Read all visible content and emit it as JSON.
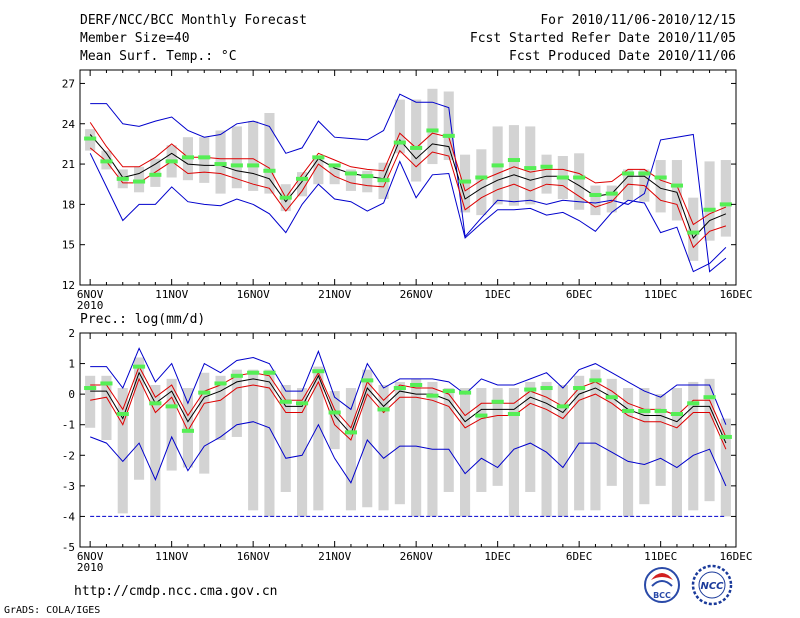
{
  "header": {
    "title": "DERF/NCC/BCC Monthly Forecast",
    "member_size": "Member Size=40",
    "variable": "Mean Surf. Temp.: °C",
    "period": "For 2010/11/06-2010/12/15",
    "started": "Fcst Started Refer Date 2010/11/05",
    "produced": "Fcst Produced Date 2010/11/06"
  },
  "footer": {
    "url": "http://cmdp.ncc.cma.gov.cn",
    "credit": "GrADS: COLA/IGES",
    "logo_bcc": "BCC",
    "logo_ncc": "NCC"
  },
  "colors": {
    "box": "#d3d3d3",
    "median": "#55ee55",
    "mean": "#000000",
    "std": "#dd0000",
    "extreme": "#0000cc",
    "frame": "#000000"
  },
  "chart_data": [
    {
      "type": "line",
      "title": "Mean Surf. Temp.: °C",
      "ylim": [
        12,
        28
      ],
      "yticks": [
        12,
        15,
        18,
        21,
        24,
        27
      ],
      "xlim": [
        0.5,
        40.5
      ],
      "xticks": [
        {
          "day": 1,
          "label": "6NOV"
        },
        {
          "day": 6,
          "label": "11NOV"
        },
        {
          "day": 11,
          "label": "16NOV"
        },
        {
          "day": 16,
          "label": "21NOV"
        },
        {
          "day": 21,
          "label": "26NOV"
        },
        {
          "day": 26,
          "label": "1DEC"
        },
        {
          "day": 31,
          "label": "6DEC"
        },
        {
          "day": 36,
          "label": "11DEC"
        },
        {
          "day": 41,
          "label": "16DEC"
        }
      ],
      "year_label": "2010",
      "days": [
        1,
        2,
        3,
        4,
        5,
        6,
        7,
        8,
        9,
        10,
        11,
        12,
        13,
        14,
        15,
        16,
        17,
        18,
        19,
        20,
        21,
        22,
        23,
        24,
        25,
        26,
        27,
        28,
        29,
        30,
        31,
        32,
        33,
        34,
        35,
        36,
        37,
        38,
        39,
        40
      ],
      "series": [
        {
          "name": "max",
          "values": [
            25.5,
            25.5,
            24.0,
            23.8,
            24.2,
            24.5,
            23.5,
            23.0,
            23.2,
            24.0,
            24.2,
            23.8,
            21.8,
            22.2,
            24.2,
            23.0,
            22.9,
            22.8,
            23.5,
            26.2,
            25.6,
            25.6,
            25.2,
            15.6,
            17.0,
            18.3,
            18.2,
            18.3,
            18.0,
            18.3,
            18.2,
            18.1,
            18.3,
            18.0,
            18.8,
            22.8,
            23.0,
            23.2,
            13.0,
            14.0
          ]
        },
        {
          "name": "mean_plus_std",
          "values": [
            24.1,
            22.3,
            20.8,
            20.8,
            21.5,
            22.5,
            21.5,
            21.5,
            21.4,
            21.4,
            21.4,
            20.7,
            18.5,
            20.2,
            21.8,
            21.3,
            20.8,
            20.6,
            20.5,
            23.3,
            22.2,
            23.3,
            23.0,
            19.0,
            19.8,
            20.3,
            20.8,
            20.4,
            20.6,
            20.6,
            20.3,
            19.6,
            19.7,
            20.6,
            20.6,
            19.8,
            19.4,
            16.5,
            17.3,
            17.8
          ]
        },
        {
          "name": "mean",
          "values": [
            23.2,
            21.8,
            20.0,
            20.3,
            21.0,
            21.8,
            21.0,
            20.9,
            20.9,
            20.5,
            20.3,
            19.9,
            18.2,
            19.7,
            21.4,
            20.7,
            20.3,
            20.1,
            19.9,
            22.8,
            21.4,
            22.5,
            22.3,
            18.4,
            19.2,
            19.8,
            20.2,
            19.8,
            20.1,
            20.1,
            19.4,
            18.6,
            18.8,
            20.1,
            20.1,
            19.2,
            18.9,
            15.5,
            16.8,
            17.3
          ]
        },
        {
          "name": "mean_minus_std",
          "values": [
            22.2,
            21.2,
            19.6,
            19.6,
            20.4,
            21.2,
            20.3,
            20.4,
            20.3,
            19.9,
            19.5,
            19.2,
            17.5,
            19.0,
            21.0,
            20.1,
            19.6,
            19.4,
            19.3,
            22.0,
            20.8,
            21.9,
            21.6,
            17.6,
            18.5,
            19.1,
            19.5,
            19.0,
            19.5,
            19.4,
            18.6,
            17.8,
            18.2,
            19.5,
            19.4,
            18.3,
            18.0,
            14.8,
            16.0,
            16.4
          ]
        },
        {
          "name": "min",
          "values": [
            21.8,
            19.3,
            16.8,
            18.0,
            18.0,
            19.3,
            18.2,
            18.0,
            17.9,
            18.4,
            18.0,
            17.3,
            15.9,
            18.0,
            19.5,
            18.4,
            18.2,
            17.5,
            18.1,
            21.2,
            18.5,
            20.2,
            20.3,
            15.5,
            16.6,
            17.6,
            17.6,
            17.7,
            17.2,
            17.4,
            16.8,
            16.0,
            17.4,
            18.3,
            18.1,
            15.9,
            16.3,
            13.0,
            13.6,
            14.8
          ]
        },
        {
          "name": "median",
          "values": [
            22.9,
            21.2,
            19.9,
            19.7,
            20.2,
            21.2,
            21.5,
            21.5,
            21.0,
            20.9,
            20.9,
            20.5,
            18.5,
            19.9,
            21.5,
            20.9,
            20.3,
            20.1,
            19.8,
            22.6,
            22.2,
            23.5,
            23.1,
            19.7,
            20.0,
            20.9,
            21.3,
            20.7,
            20.8,
            20.0,
            20.0,
            18.7,
            18.8,
            20.3,
            20.3,
            20.0,
            19.4,
            15.9,
            17.6,
            18.0
          ]
        },
        {
          "name": "box_upper",
          "values": [
            23.6,
            22.0,
            20.6,
            20.8,
            21.4,
            22.4,
            23.0,
            23.0,
            23.5,
            23.8,
            24.2,
            24.8,
            19.5,
            20.4,
            21.6,
            21.0,
            20.6,
            20.5,
            21.1,
            25.8,
            25.8,
            26.6,
            26.4,
            21.7,
            22.1,
            23.8,
            23.9,
            23.8,
            21.7,
            21.6,
            21.8,
            19.4,
            19.4,
            20.6,
            20.6,
            21.3,
            21.3,
            18.5,
            21.2,
            21.3
          ]
        },
        {
          "name": "box_lower",
          "values": [
            22.0,
            20.6,
            19.2,
            18.9,
            19.3,
            20.0,
            19.8,
            19.6,
            18.8,
            19.2,
            19.0,
            18.8,
            17.5,
            18.6,
            19.5,
            19.5,
            19.0,
            18.9,
            18.4,
            21.8,
            19.7,
            21.0,
            21.3,
            17.4,
            17.2,
            18.0,
            17.9,
            18.0,
            18.8,
            18.4,
            17.6,
            17.2,
            17.4,
            18.3,
            18.2,
            17.4,
            16.8,
            13.8,
            15.3,
            15.6
          ]
        }
      ]
    },
    {
      "type": "line",
      "title": "Prec.: log(mm/d)",
      "ylim": [
        -5,
        2
      ],
      "yticks": [
        -5,
        -4,
        -3,
        -2,
        -1,
        0,
        1,
        2
      ],
      "xlim": [
        0.5,
        40.5
      ],
      "xticks": [
        {
          "day": 1,
          "label": "6NOV"
        },
        {
          "day": 6,
          "label": "11NOV"
        },
        {
          "day": 11,
          "label": "16NOV"
        },
        {
          "day": 16,
          "label": "21NOV"
        },
        {
          "day": 21,
          "label": "26NOV"
        },
        {
          "day": 26,
          "label": "1DEC"
        },
        {
          "day": 31,
          "label": "6DEC"
        },
        {
          "day": 36,
          "label": "11DEC"
        },
        {
          "day": 41,
          "label": "16DEC"
        }
      ],
      "year_label": "2010",
      "days": [
        1,
        2,
        3,
        4,
        5,
        6,
        7,
        8,
        9,
        10,
        11,
        12,
        13,
        14,
        15,
        16,
        17,
        18,
        19,
        20,
        21,
        22,
        23,
        24,
        25,
        26,
        27,
        28,
        29,
        30,
        31,
        32,
        33,
        34,
        35,
        36,
        37,
        38,
        39,
        40
      ],
      "reference_line": -4,
      "series": [
        {
          "name": "max",
          "values": [
            0.9,
            0.9,
            0.2,
            1.5,
            0.4,
            1.0,
            -0.3,
            1.0,
            0.7,
            1.1,
            1.2,
            1.0,
            0.1,
            0.1,
            1.4,
            -0.1,
            -0.5,
            1.0,
            0.2,
            0.5,
            0.5,
            0.5,
            0.4,
            0.0,
            0.5,
            0.3,
            0.3,
            0.5,
            0.7,
            0.2,
            0.8,
            1.0,
            0.7,
            0.4,
            0.1,
            -0.1,
            0.3,
            0.3,
            0.3,
            -1.0
          ]
        },
        {
          "name": "mean_plus_std",
          "values": [
            0.3,
            0.3,
            -0.5,
            0.9,
            -0.1,
            0.3,
            -0.7,
            0.1,
            0.3,
            0.6,
            0.7,
            0.6,
            -0.2,
            -0.2,
            0.7,
            -0.5,
            -1.1,
            0.4,
            -0.2,
            0.3,
            0.2,
            0.2,
            0.0,
            -0.7,
            -0.3,
            -0.3,
            -0.3,
            0.1,
            -0.1,
            -0.4,
            0.2,
            0.4,
            0.1,
            -0.3,
            -0.5,
            -0.5,
            -0.7,
            -0.2,
            -0.2,
            -1.4
          ]
        },
        {
          "name": "mean",
          "values": [
            0.1,
            0.1,
            -0.8,
            0.7,
            -0.3,
            0.1,
            -0.9,
            -0.1,
            0.1,
            0.4,
            0.5,
            0.4,
            -0.4,
            -0.4,
            0.6,
            -0.7,
            -1.3,
            0.2,
            -0.4,
            0.1,
            0.0,
            0.0,
            -0.2,
            -0.9,
            -0.5,
            -0.5,
            -0.5,
            -0.1,
            -0.3,
            -0.6,
            0.0,
            0.2,
            -0.1,
            -0.5,
            -0.7,
            -0.7,
            -0.9,
            -0.4,
            -0.4,
            -1.6
          ]
        },
        {
          "name": "mean_minus_std",
          "values": [
            -0.2,
            -0.1,
            -1.0,
            0.5,
            -0.6,
            -0.1,
            -1.2,
            -0.3,
            -0.2,
            0.2,
            0.3,
            0.2,
            -0.6,
            -0.6,
            0.4,
            -1.0,
            -1.5,
            0.0,
            -0.6,
            -0.1,
            -0.1,
            -0.2,
            -0.4,
            -1.1,
            -0.8,
            -0.7,
            -0.7,
            -0.3,
            -0.5,
            -0.8,
            -0.2,
            0.0,
            -0.3,
            -0.7,
            -0.9,
            -0.9,
            -1.1,
            -0.6,
            -0.6,
            -1.8
          ]
        },
        {
          "name": "min",
          "values": [
            -1.4,
            -1.6,
            -2.2,
            -1.6,
            -2.8,
            -1.4,
            -2.5,
            -1.7,
            -1.4,
            -1.0,
            -0.9,
            -1.1,
            -2.1,
            -2.0,
            -1.0,
            -2.1,
            -2.9,
            -1.5,
            -2.1,
            -1.7,
            -1.7,
            -1.8,
            -1.8,
            -2.6,
            -2.1,
            -2.4,
            -1.8,
            -1.6,
            -1.9,
            -2.4,
            -1.6,
            -1.6,
            -1.9,
            -2.2,
            -2.3,
            -2.1,
            -2.4,
            -2.0,
            -1.8,
            -3.0
          ]
        },
        {
          "name": "median",
          "values": [
            0.2,
            0.35,
            -0.65,
            0.9,
            -0.3,
            -0.4,
            -1.2,
            0.05,
            0.35,
            0.6,
            0.7,
            0.7,
            -0.25,
            -0.3,
            0.75,
            -0.6,
            -1.25,
            0.45,
            -0.5,
            0.2,
            0.3,
            -0.05,
            0.1,
            0.05,
            -0.7,
            -0.25,
            -0.65,
            0.15,
            0.2,
            -0.4,
            0.2,
            0.45,
            -0.1,
            -0.55,
            -0.55,
            -0.55,
            -0.65,
            -0.3,
            -0.1,
            -1.4
          ]
        },
        {
          "name": "box_upper",
          "values": [
            0.6,
            0.6,
            0.2,
            1.2,
            0.3,
            0.5,
            0.2,
            0.7,
            0.6,
            0.8,
            0.8,
            0.8,
            0.3,
            0.2,
            0.9,
            0.1,
            0.2,
            0.8,
            0.3,
            0.4,
            0.5,
            0.4,
            0.2,
            0.2,
            0.2,
            0.2,
            0.2,
            0.4,
            0.4,
            0.3,
            0.6,
            0.8,
            0.5,
            0.2,
            0.2,
            0.0,
            0.2,
            0.4,
            0.5,
            -0.8
          ]
        },
        {
          "name": "box_lower",
          "values": [
            -1.1,
            -1.5,
            -3.9,
            -2.8,
            -4.0,
            -2.5,
            -2.4,
            -2.6,
            -1.5,
            -1.4,
            -3.8,
            -4.0,
            -3.2,
            -4.0,
            -3.8,
            -1.8,
            -3.8,
            -3.7,
            -3.8,
            -3.6,
            -4.0,
            -4.0,
            -3.2,
            -4.0,
            -3.2,
            -3.0,
            -4.0,
            -3.2,
            -4.0,
            -4.0,
            -3.8,
            -3.8,
            -3.0,
            -4.0,
            -3.6,
            -3.0,
            -4.0,
            -3.8,
            -3.5,
            -4.0
          ]
        }
      ]
    }
  ]
}
